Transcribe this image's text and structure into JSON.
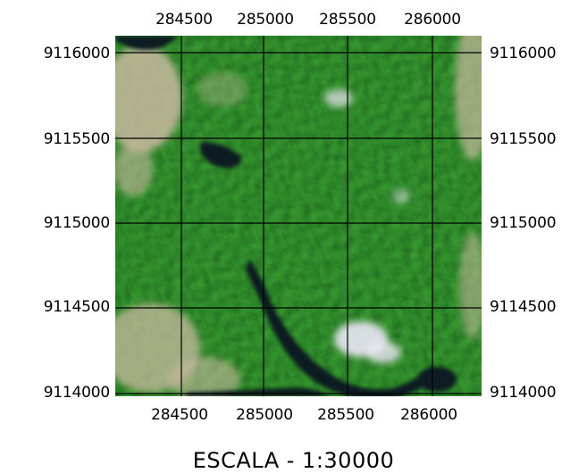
{
  "map": {
    "x_ticks": [
      "284500",
      "285000",
      "285500",
      "286000"
    ],
    "y_ticks": [
      "9116000",
      "9115500",
      "9115000",
      "9114500",
      "9114000"
    ],
    "scale_text": "ESCALA - 1:30000",
    "colors": {
      "vegetation": "#2f8a2a",
      "vegetation_bright": "#4fc23d",
      "vegetation_dark": "#16521a",
      "water": "#0d1b22",
      "bare_soil": "#c9b9a0",
      "cloud": "#ece7f5",
      "grid_line": "#000000"
    }
  }
}
